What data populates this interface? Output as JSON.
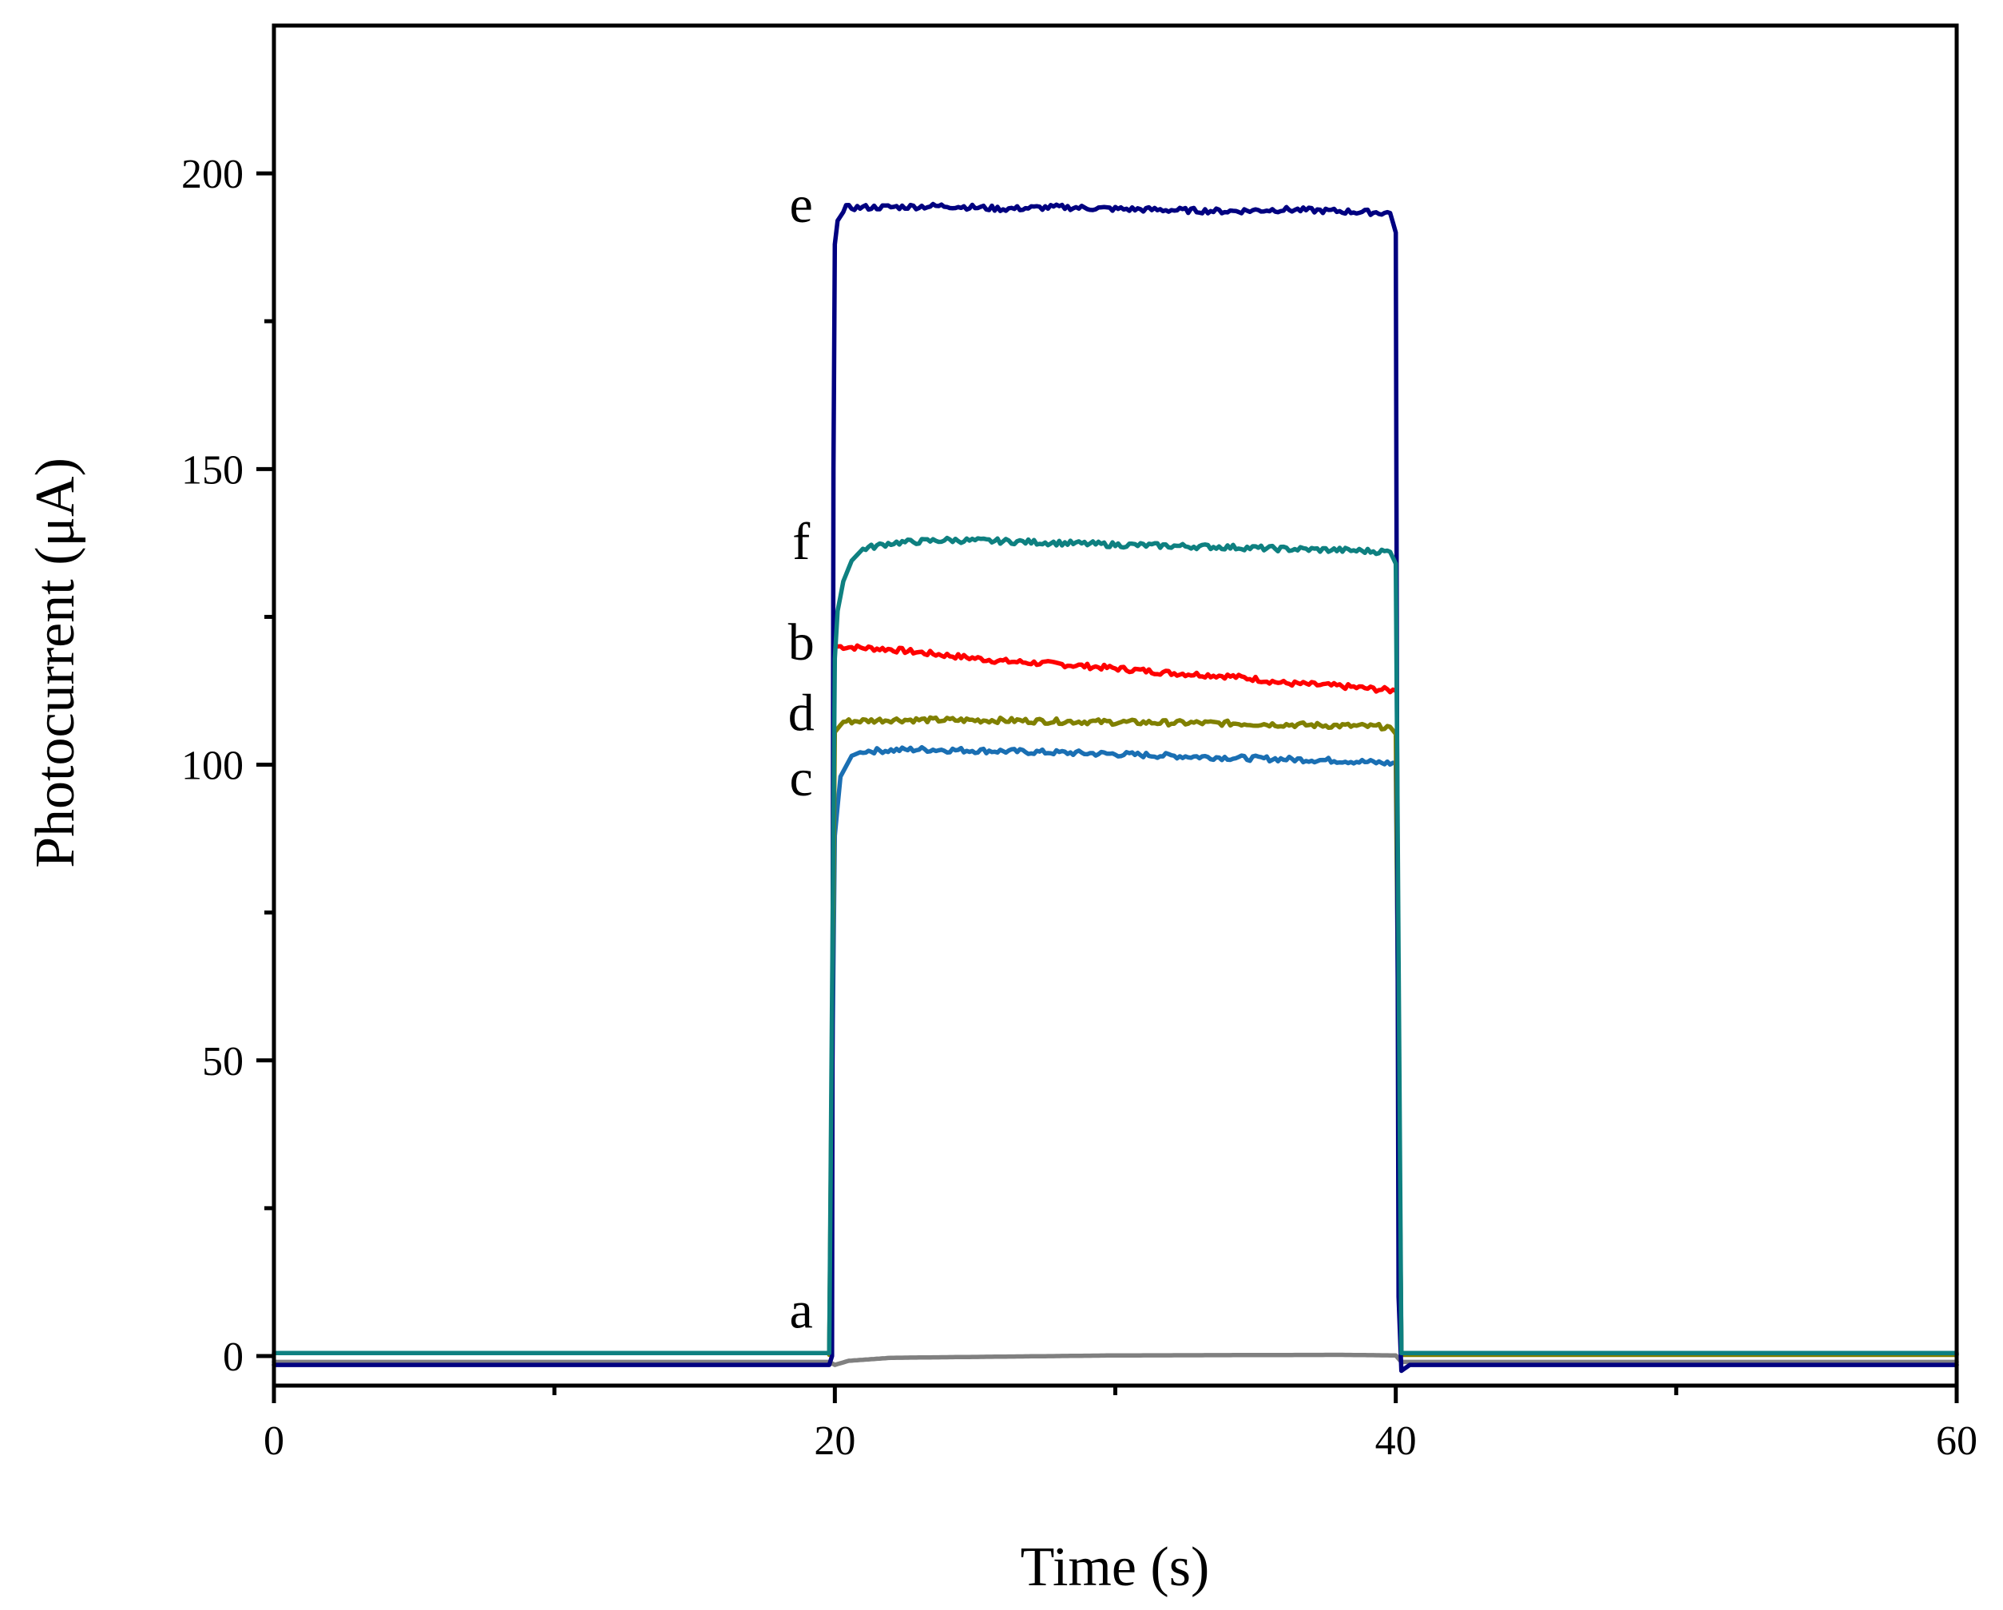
{
  "chart_data": {
    "type": "line",
    "xlabel": "Time (s)",
    "ylabel": "Photocurrent (μA)",
    "xlim": [
      0,
      60
    ],
    "ylim": [
      -5,
      225
    ],
    "xticks": [
      0,
      20,
      40,
      60
    ],
    "yticks": [
      0,
      50,
      100,
      150,
      200
    ],
    "grid": false,
    "legend": "none",
    "series": [
      {
        "name": "a",
        "color": "#808080",
        "points": [
          [
            0,
            -1.0
          ],
          [
            19.8,
            -1.0
          ],
          [
            20.0,
            -1.5
          ],
          [
            20.5,
            -0.8
          ],
          [
            22,
            -0.3
          ],
          [
            30,
            0.1
          ],
          [
            38,
            0.2
          ],
          [
            40,
            0.1
          ],
          [
            40.2,
            -1.0
          ],
          [
            60,
            -1.0
          ]
        ]
      },
      {
        "name": "b",
        "color": "#ff0000",
        "points": [
          [
            20.1,
            120
          ],
          [
            22,
            119.5
          ],
          [
            24,
            118.5
          ],
          [
            26,
            117.5
          ],
          [
            28,
            117
          ],
          [
            30,
            116.3
          ],
          [
            32,
            115.5
          ],
          [
            34,
            115
          ],
          [
            35,
            114.5
          ],
          [
            36,
            113.8
          ],
          [
            38,
            113.3
          ],
          [
            40,
            112.5
          ]
        ]
      },
      {
        "name": "c",
        "color": "#1a6fb3",
        "points": [
          [
            19.8,
            0.3
          ],
          [
            20.0,
            88
          ],
          [
            20.2,
            98
          ],
          [
            20.6,
            101.5
          ],
          [
            21,
            102.3
          ],
          [
            23,
            102.6
          ],
          [
            26,
            102.3
          ],
          [
            30,
            101.8
          ],
          [
            34,
            101.2
          ],
          [
            38,
            100.7
          ],
          [
            40,
            100.2
          ],
          [
            40.2,
            0.3
          ],
          [
            60,
            0.3
          ]
        ]
      },
      {
        "name": "d",
        "color": "#808000",
        "points": [
          [
            19.8,
            0.2
          ],
          [
            20.0,
            105.5
          ],
          [
            20.3,
            107.3
          ],
          [
            22,
            107.6
          ],
          [
            26,
            107.5
          ],
          [
            30,
            107.2
          ],
          [
            34,
            107.0
          ],
          [
            38,
            106.6
          ],
          [
            39.8,
            106.4
          ],
          [
            40,
            105.2
          ],
          [
            40.2,
            0.2
          ],
          [
            60,
            0.2
          ]
        ]
      },
      {
        "name": "e",
        "color": "#000080",
        "points": [
          [
            0,
            -1.5
          ],
          [
            19.8,
            -1.5
          ],
          [
            19.9,
            0
          ],
          [
            19.95,
            150
          ],
          [
            20.0,
            188
          ],
          [
            20.1,
            192
          ],
          [
            20.4,
            194.2
          ],
          [
            22,
            194.3
          ],
          [
            24,
            194.5
          ],
          [
            26,
            194.0
          ],
          [
            28,
            194.3
          ],
          [
            30,
            194.0
          ],
          [
            32,
            193.8
          ],
          [
            34,
            193.6
          ],
          [
            36,
            193.9
          ],
          [
            38,
            193.6
          ],
          [
            39.8,
            193.3
          ],
          [
            40.0,
            190
          ],
          [
            40.05,
            100
          ],
          [
            40.1,
            10
          ],
          [
            40.2,
            -2.5
          ],
          [
            40.5,
            -1.5
          ],
          [
            60,
            -1.5
          ]
        ]
      },
      {
        "name": "f",
        "color": "#0e8080",
        "points": [
          [
            0,
            0.5
          ],
          [
            19.8,
            0.5
          ],
          [
            19.9,
            60
          ],
          [
            20.0,
            118
          ],
          [
            20.1,
            126
          ],
          [
            20.3,
            131
          ],
          [
            20.6,
            134.5
          ],
          [
            21,
            136.5
          ],
          [
            22,
            137.5
          ],
          [
            24,
            138
          ],
          [
            26,
            137.8
          ],
          [
            28,
            137.5
          ],
          [
            30,
            137.2
          ],
          [
            32,
            137
          ],
          [
            34,
            136.8
          ],
          [
            36,
            136.5
          ],
          [
            38,
            136.3
          ],
          [
            39.8,
            136
          ],
          [
            40,
            134
          ],
          [
            40.2,
            0.5
          ],
          [
            60,
            0.5
          ]
        ]
      }
    ],
    "annotations": [
      {
        "text": "e",
        "x": 18.8,
        "y": 194.5
      },
      {
        "text": "f",
        "x": 18.8,
        "y": 137.5
      },
      {
        "text": "b",
        "x": 18.8,
        "y": 120.5
      },
      {
        "text": "d",
        "x": 18.8,
        "y": 108.5
      },
      {
        "text": "c",
        "x": 18.8,
        "y": 97.5
      },
      {
        "text": "a",
        "x": 18.8,
        "y": 7.5
      }
    ]
  }
}
